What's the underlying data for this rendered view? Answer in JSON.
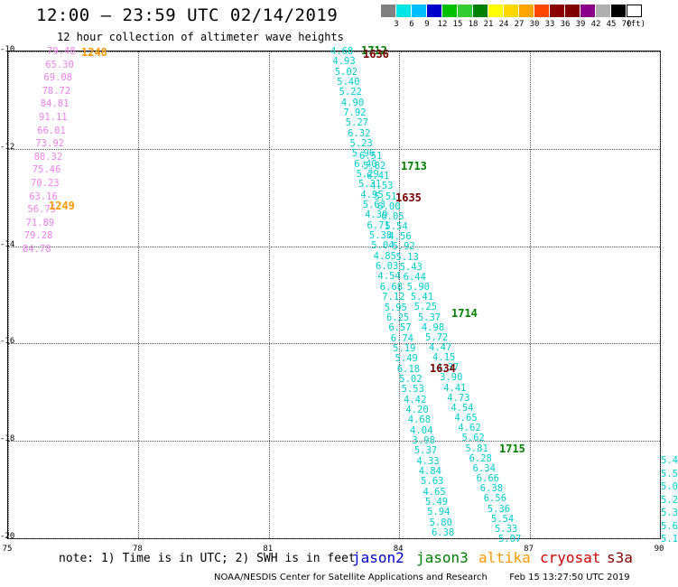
{
  "title": "12:00 — 23:59 UTC 02/14/2019",
  "subtitle": "12 hour collection of altimeter wave heights",
  "scale": {
    "unit": "(ft)",
    "colors": [
      "#808080",
      "#00e5e5",
      "#00bfff",
      "#0000cd",
      "#00c000",
      "#32cd32",
      "#008000",
      "#ffff00",
      "#ffd700",
      "#ffa500",
      "#ff4500",
      "#8b0000",
      "#800000",
      "#8b008b",
      "#b0b0b0",
      "#000000",
      "#ffffff"
    ],
    "labels": [
      "3",
      "6",
      "9",
      "12",
      "15",
      "18",
      "21",
      "24",
      "27",
      "30",
      "33",
      "36",
      "39",
      "42",
      "45",
      "70"
    ]
  },
  "axes": {
    "y_ticks": [
      "-10",
      "-12",
      "-14",
      "-16",
      "-18",
      "-20"
    ],
    "x_ticks": [
      "75",
      "78",
      "81",
      "84",
      "87",
      "90"
    ]
  },
  "passes": [
    {
      "label": "1248",
      "satellite": "altika"
    },
    {
      "label": "1249",
      "satellite": "altika"
    },
    {
      "label": "1712",
      "satellite": "jason3"
    },
    {
      "label": "1713",
      "satellite": "jason3"
    },
    {
      "label": "1714",
      "satellite": "jason3"
    },
    {
      "label": "1715",
      "satellite": "jason3"
    },
    {
      "label": "1636",
      "satellite": "cryosat"
    },
    {
      "label": "1635",
      "satellite": "cryosat"
    },
    {
      "label": "1634",
      "satellite": "cryosat"
    }
  ],
  "pink_track": [
    "79.48",
    "65.30",
    "69.08",
    "78.72",
    "84.81",
    "91.11",
    "66.01",
    "73.92",
    "80.32",
    "75.46",
    "70.23",
    "63.16",
    "56.75",
    "71.89",
    "79.28",
    "84.78"
  ],
  "track_a": [
    "4.68",
    "4.93",
    "5.02",
    "5.40",
    "5.22",
    "4.90",
    "7.92",
    "5.27",
    "6.32",
    "5.23",
    "5.96",
    "6.40",
    "5.29",
    "5.31",
    "4.95",
    "5.63",
    "4.39",
    "6.71",
    "5.38",
    "5.04",
    "4.85",
    "6.03",
    "4.54",
    "6.68",
    "7.12",
    "5.95",
    "6.25",
    "6.57",
    "6.74",
    "5.19",
    "5.49",
    "6.18",
    "5.02",
    "5.53",
    "4.42",
    "4.20",
    "4.68",
    "4.04",
    "3.98",
    "5.37",
    "4.33",
    "4.84",
    "5.63",
    "4.65",
    "5.49",
    "5.94",
    "5.80",
    "6.38"
  ],
  "track_b": [
    "6.51",
    "5.82",
    "6.41",
    "4.53",
    "5.51",
    "6.00",
    "6.05",
    "5.54",
    "4.56",
    "5.92",
    "5.13",
    "5.43",
    "6.44",
    "5.90",
    "5.41",
    "5.25",
    "5.37",
    "4.98",
    "5.72",
    "4.47",
    "4.15",
    "4.37",
    "3.90",
    "4.41",
    "4.73",
    "4.54",
    "4.65",
    "4.62",
    "5.62",
    "5.81",
    "6.28",
    "6.34",
    "6.66",
    "6.38",
    "6.56",
    "5.36",
    "5.54",
    "5.33",
    "5.07"
  ],
  "edge_track": [
    "5.4",
    "5.5",
    "5.0",
    "5.2",
    "5.3",
    "5.6",
    "5.1"
  ],
  "note": "note: 1) Time is in UTC; 2) SWH is in feet",
  "legend": [
    {
      "name": "jason2",
      "color": "#0000cc"
    },
    {
      "name": "jason3",
      "color": "#008000"
    },
    {
      "name": "altika",
      "color": "#ff9900"
    },
    {
      "name": "cryosat",
      "color": "#cc0000"
    },
    {
      "name": "s3a",
      "color": "#800000"
    }
  ],
  "credit": "NOAA/NESDIS Center for Satellite Applications and Research",
  "timestamp": "Feb 15 13:27:50 UTC 2019"
}
